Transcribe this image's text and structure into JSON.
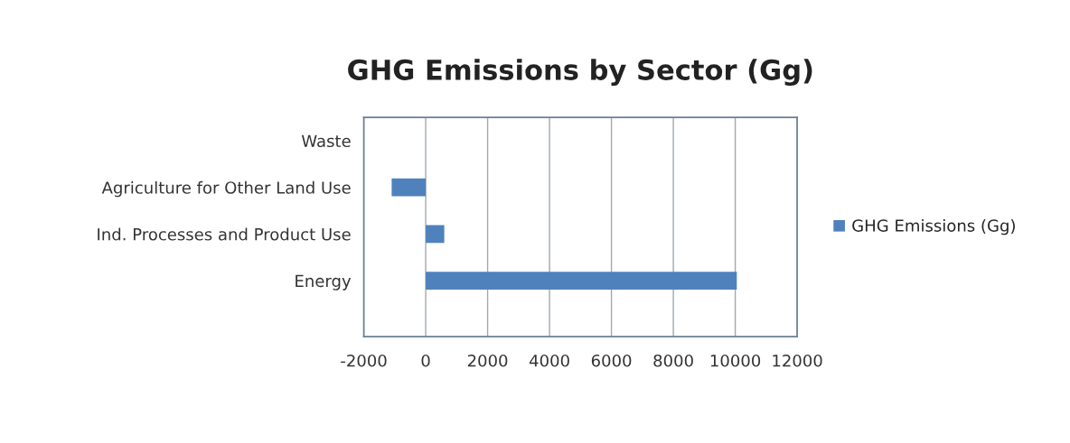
{
  "chart_data": {
    "type": "bar",
    "orientation": "horizontal",
    "title": "GHG Emissions by Sector (Gg)",
    "categories": [
      "Waste",
      "Agriculture for Other Land Use",
      "Ind. Processes and Product Use",
      "Energy"
    ],
    "series": [
      {
        "name": "GHG Emissions (Gg)",
        "color": "#4f81bd",
        "values": [
          null,
          -1100,
          600,
          10050
        ]
      }
    ],
    "xlim": [
      -2000,
      12000
    ],
    "xticks": [
      -2000,
      0,
      2000,
      4000,
      6000,
      8000,
      10000,
      12000
    ],
    "grid": "x",
    "legend": "right"
  }
}
